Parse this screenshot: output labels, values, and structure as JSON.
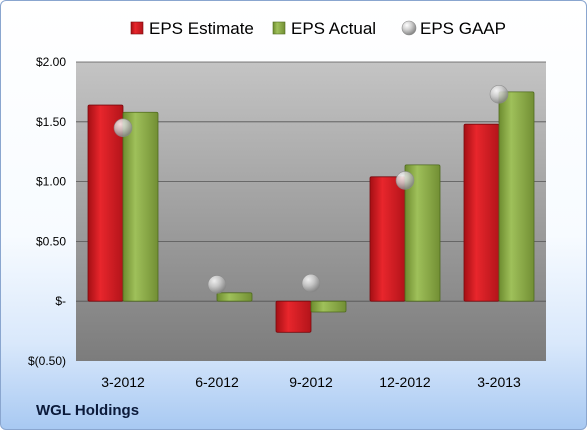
{
  "company_label": "WGL Holdings",
  "colors": {
    "estimate": "#d81c22",
    "actual": "#8fb04a",
    "gaap": "#c0c0c0",
    "plot_top": "#bfbfbf",
    "plot_bottom": "#7a7a7a"
  },
  "chart_data": {
    "type": "bar",
    "categories": [
      "3-2012",
      "6-2012",
      "9-2012",
      "12-2012",
      "3-2013"
    ],
    "series": [
      {
        "name": "EPS Estimate",
        "kind": "bar",
        "values": [
          1.64,
          null,
          -0.26,
          1.04,
          1.48
        ]
      },
      {
        "name": "EPS Actual",
        "kind": "bar",
        "values": [
          1.58,
          0.07,
          -0.09,
          1.14,
          1.75
        ]
      },
      {
        "name": "EPS GAAP",
        "kind": "marker",
        "values": [
          1.45,
          0.14,
          0.15,
          1.01,
          1.73
        ]
      }
    ],
    "ylim": [
      -0.5,
      2.0
    ],
    "yticks": [
      -0.5,
      0,
      0.5,
      1.0,
      1.5,
      2.0
    ],
    "ytick_labels": [
      "$(0.50)",
      "$-",
      "$0.50",
      "$1.00",
      "$1.50",
      "$2.00"
    ],
    "grid": true,
    "legend_position": "top"
  }
}
